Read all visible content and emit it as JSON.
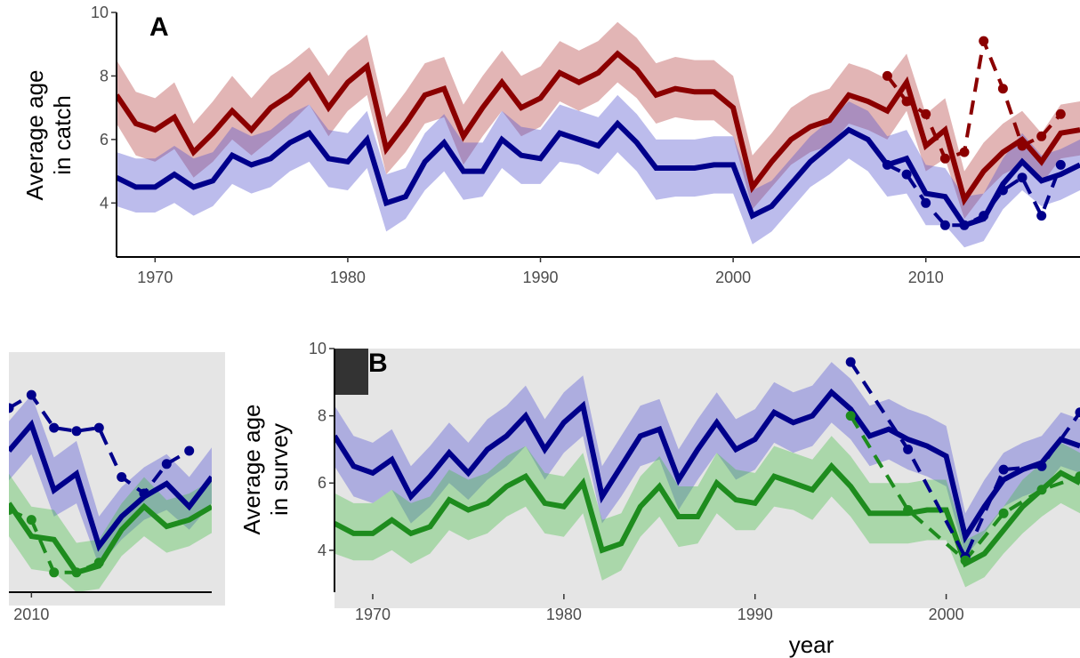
{
  "chart_data": [
    {
      "type": "line",
      "panel_label": "A",
      "ylabel": [
        "Average age",
        "in catch"
      ],
      "xlabel": "",
      "xlim": [
        1968,
        2018
      ],
      "ylim": [
        2.3,
        10
      ],
      "yticks": [
        4,
        6,
        8,
        10
      ],
      "xticks": [
        1970,
        1980,
        1990,
        2000,
        2010
      ],
      "background": "white",
      "colors": {
        "red": "#8b0000",
        "red_band": "#c97b7b",
        "blue": "#00008b",
        "blue_band": "#8080d6"
      },
      "series": [
        {
          "color": "red",
          "x": [
            1968,
            1969,
            1970,
            1971,
            1972,
            1973,
            1974,
            1975,
            1976,
            1977,
            1978,
            1979,
            1980,
            1981,
            1982,
            1983,
            1984,
            1985,
            1986,
            1987,
            1988,
            1989,
            1990,
            1991,
            1992,
            1993,
            1994,
            1995,
            1996,
            1997,
            1998,
            1999,
            2000,
            2001,
            2002,
            2003,
            2004,
            2005,
            2006,
            2007,
            2008,
            2009,
            2010,
            2011,
            2012,
            2013,
            2014,
            2015,
            2016,
            2017,
            2018
          ],
          "y": [
            7.4,
            6.5,
            6.3,
            6.7,
            5.6,
            6.2,
            6.9,
            6.3,
            7.0,
            7.4,
            8.0,
            7.0,
            7.8,
            8.3,
            5.7,
            6.5,
            7.4,
            7.6,
            6.1,
            7.0,
            7.8,
            7.0,
            7.3,
            8.1,
            7.8,
            8.1,
            8.7,
            8.2,
            7.4,
            7.6,
            7.5,
            7.5,
            7.0,
            4.5,
            5.3,
            6.0,
            6.4,
            6.6,
            7.4,
            7.2,
            6.9,
            7.8,
            5.8,
            6.3,
            4.1,
            5.0,
            5.6,
            6.0,
            5.3,
            6.2,
            6.3
          ],
          "lower": [
            6.5,
            5.5,
            5.3,
            5.7,
            4.8,
            5.3,
            6.0,
            5.5,
            6.0,
            6.5,
            7.1,
            6.1,
            6.9,
            7.4,
            4.9,
            5.6,
            6.5,
            6.7,
            5.2,
            6.1,
            6.9,
            6.1,
            6.4,
            7.2,
            6.9,
            7.2,
            7.8,
            7.3,
            6.5,
            6.7,
            6.6,
            6.6,
            6.1,
            3.8,
            4.5,
            5.2,
            5.6,
            5.8,
            6.5,
            6.3,
            6.0,
            6.9,
            5.0,
            5.4,
            3.5,
            4.3,
            4.9,
            5.2,
            4.6,
            5.4,
            5.5
          ],
          "upper": [
            8.5,
            7.5,
            7.3,
            7.8,
            6.5,
            7.2,
            8.0,
            7.3,
            8.0,
            8.4,
            8.9,
            8.0,
            8.8,
            9.3,
            6.7,
            7.5,
            8.4,
            8.6,
            7.1,
            8.0,
            8.8,
            8.0,
            8.3,
            9.1,
            8.8,
            9.1,
            9.7,
            9.2,
            8.4,
            8.6,
            8.5,
            8.5,
            8.0,
            5.5,
            6.2,
            7.0,
            7.4,
            7.6,
            8.4,
            8.2,
            7.9,
            8.7,
            6.8,
            7.3,
            5.0,
            5.9,
            6.5,
            6.9,
            6.2,
            7.1,
            7.2
          ]
        },
        {
          "color": "blue",
          "x": [
            1968,
            1969,
            1970,
            1971,
            1972,
            1973,
            1974,
            1975,
            1976,
            1977,
            1978,
            1979,
            1980,
            1981,
            1982,
            1983,
            1984,
            1985,
            1986,
            1987,
            1988,
            1989,
            1990,
            1991,
            1992,
            1993,
            1994,
            1995,
            1996,
            1997,
            1998,
            1999,
            2000,
            2001,
            2002,
            2003,
            2004,
            2005,
            2006,
            2007,
            2008,
            2009,
            2010,
            2011,
            2012,
            2013,
            2014,
            2015,
            2016,
            2017,
            2018
          ],
          "y": [
            4.8,
            4.5,
            4.5,
            4.9,
            4.5,
            4.7,
            5.5,
            5.2,
            5.4,
            5.9,
            6.2,
            5.4,
            5.3,
            6.0,
            4.0,
            4.2,
            5.3,
            5.9,
            5.0,
            5.0,
            6.0,
            5.5,
            5.4,
            6.2,
            6.0,
            5.8,
            6.5,
            5.9,
            5.1,
            5.1,
            5.1,
            5.2,
            5.2,
            3.6,
            3.9,
            4.6,
            5.3,
            5.8,
            6.3,
            6.0,
            5.2,
            5.4,
            4.3,
            4.2,
            3.3,
            3.5,
            4.6,
            5.3,
            4.7,
            4.9,
            5.2
          ],
          "lower": [
            3.9,
            3.7,
            3.7,
            4.0,
            3.6,
            3.9,
            4.6,
            4.3,
            4.5,
            5.0,
            5.3,
            4.5,
            4.4,
            5.1,
            3.1,
            3.5,
            4.4,
            5.0,
            4.1,
            4.2,
            5.1,
            4.6,
            4.6,
            5.3,
            5.2,
            4.9,
            5.6,
            5.0,
            4.1,
            4.2,
            4.2,
            4.3,
            4.3,
            2.7,
            3.1,
            3.8,
            4.5,
            4.9,
            5.4,
            5.0,
            4.2,
            4.3,
            3.3,
            3.3,
            2.6,
            2.8,
            3.8,
            4.4,
            3.9,
            4.1,
            4.4
          ],
          "upper": [
            5.6,
            5.4,
            5.4,
            5.8,
            5.4,
            5.6,
            6.4,
            6.1,
            6.3,
            6.8,
            7.1,
            6.3,
            6.2,
            6.9,
            4.9,
            5.1,
            6.2,
            6.8,
            5.9,
            5.9,
            6.9,
            6.4,
            6.3,
            7.1,
            6.9,
            6.7,
            7.4,
            6.8,
            6.0,
            6.0,
            6.0,
            6.1,
            6.1,
            4.4,
            4.7,
            5.4,
            6.1,
            6.6,
            7.2,
            6.9,
            6.1,
            6.3,
            5.2,
            5.1,
            4.2,
            4.3,
            5.4,
            6.2,
            5.5,
            5.7,
            6.0
          ]
        },
        {
          "color": "red",
          "style": "dashed-points",
          "x": [
            2008,
            2009,
            2010,
            2011,
            2012,
            2013,
            2014,
            2015,
            2016,
            2017
          ],
          "y": [
            8.0,
            7.2,
            6.8,
            5.4,
            5.6,
            9.1,
            7.6,
            5.8,
            6.1,
            6.8
          ]
        },
        {
          "color": "blue",
          "style": "dashed-points",
          "x": [
            2008,
            2009,
            2010,
            2011,
            2012,
            2013,
            2014,
            2015,
            2016,
            2017
          ],
          "y": [
            5.2,
            4.9,
            4.0,
            3.3,
            3.3,
            3.6,
            4.4,
            4.8,
            3.6,
            5.2
          ]
        }
      ]
    },
    {
      "type": "line",
      "panel_label": "B",
      "ylabel": [
        "Average age",
        "in survey"
      ],
      "xlabel": "year",
      "xlim": [
        1968,
        2007
      ],
      "ylim": [
        2.7,
        10
      ],
      "yticks": [
        4,
        6,
        8,
        10
      ],
      "xticks": [
        1970,
        1980,
        1990,
        2000
      ],
      "background": "grey",
      "colors": {
        "blue": "#00008b",
        "blue_band": "#8f8fd8",
        "green": "#1e8c1e",
        "green_band": "#8fd48f",
        "panel_bg": "#e5e5e5"
      },
      "series": [
        {
          "color": "blue",
          "x": [
            1968,
            1969,
            1970,
            1971,
            1972,
            1973,
            1974,
            1975,
            1976,
            1977,
            1978,
            1979,
            1980,
            1981,
            1982,
            1983,
            1984,
            1985,
            1986,
            1987,
            1988,
            1989,
            1990,
            1991,
            1992,
            1993,
            1994,
            1995,
            1996,
            1997,
            1998,
            1999,
            2000,
            2001,
            2002,
            2003,
            2004,
            2005,
            2006,
            2007
          ],
          "y": [
            7.4,
            6.5,
            6.3,
            6.7,
            5.6,
            6.2,
            6.9,
            6.3,
            7.0,
            7.4,
            8.0,
            7.0,
            7.8,
            8.3,
            5.6,
            6.5,
            7.4,
            7.6,
            6.1,
            7.0,
            7.8,
            7.0,
            7.3,
            8.1,
            7.8,
            8.0,
            8.7,
            8.2,
            7.4,
            7.6,
            7.3,
            7.1,
            6.8,
            4.4,
            5.3,
            6.1,
            6.4,
            6.6,
            7.3,
            7.1
          ],
          "lower": [
            6.5,
            5.6,
            5.4,
            5.8,
            4.8,
            5.3,
            6.0,
            5.5,
            6.1,
            6.5,
            7.1,
            6.1,
            6.9,
            7.4,
            4.8,
            5.6,
            6.5,
            6.7,
            5.2,
            6.1,
            6.9,
            6.1,
            6.4,
            7.2,
            6.9,
            7.1,
            7.8,
            7.3,
            6.5,
            6.7,
            6.4,
            6.2,
            5.9,
            3.8,
            4.5,
            5.3,
            5.6,
            5.8,
            6.5,
            6.3
          ],
          "upper": [
            8.3,
            7.4,
            7.2,
            7.6,
            6.5,
            7.1,
            7.8,
            7.2,
            7.9,
            8.3,
            8.9,
            7.9,
            8.7,
            9.2,
            6.5,
            7.4,
            8.3,
            8.5,
            7.0,
            7.9,
            8.7,
            7.9,
            8.2,
            9.0,
            8.7,
            8.9,
            9.6,
            9.1,
            8.3,
            8.5,
            8.2,
            8.0,
            7.7,
            5.1,
            6.1,
            6.9,
            7.2,
            7.4,
            8.1,
            7.9
          ]
        },
        {
          "color": "green",
          "x": [
            1968,
            1969,
            1970,
            1971,
            1972,
            1973,
            1974,
            1975,
            1976,
            1977,
            1978,
            1979,
            1980,
            1981,
            1982,
            1983,
            1984,
            1985,
            1986,
            1987,
            1988,
            1989,
            1990,
            1991,
            1992,
            1993,
            1994,
            1995,
            1996,
            1997,
            1998,
            1999,
            2000,
            2001,
            2002,
            2003,
            2004,
            2005,
            2006,
            2007
          ],
          "y": [
            4.8,
            4.5,
            4.5,
            4.9,
            4.5,
            4.7,
            5.5,
            5.2,
            5.4,
            5.9,
            6.2,
            5.4,
            5.3,
            6.0,
            4.0,
            4.2,
            5.3,
            5.9,
            5.0,
            5.0,
            6.0,
            5.5,
            5.4,
            6.2,
            6.0,
            5.8,
            6.5,
            5.9,
            5.1,
            5.1,
            5.1,
            5.2,
            5.2,
            3.6,
            3.9,
            4.6,
            5.3,
            5.8,
            6.3,
            6.0
          ],
          "lower": [
            3.9,
            3.7,
            3.7,
            4.0,
            3.6,
            3.9,
            4.6,
            4.3,
            4.5,
            5.0,
            5.3,
            4.5,
            4.4,
            5.1,
            3.1,
            3.4,
            4.4,
            5.0,
            4.1,
            4.2,
            5.1,
            4.6,
            4.6,
            5.3,
            5.2,
            4.9,
            5.6,
            5.0,
            4.2,
            4.2,
            4.2,
            4.3,
            4.3,
            2.9,
            3.2,
            3.9,
            4.5,
            5.0,
            5.4,
            5.1
          ],
          "upper": [
            5.7,
            5.4,
            5.4,
            5.8,
            5.4,
            5.6,
            6.4,
            6.1,
            6.3,
            6.8,
            7.1,
            6.3,
            6.2,
            6.9,
            4.9,
            5.1,
            6.2,
            6.8,
            5.9,
            5.9,
            6.9,
            6.4,
            6.3,
            7.1,
            6.9,
            6.7,
            7.4,
            6.8,
            6.0,
            6.0,
            6.0,
            6.1,
            6.1,
            4.3,
            4.6,
            5.3,
            6.1,
            6.6,
            7.2,
            6.9
          ]
        },
        {
          "color": "blue",
          "style": "dashed-points",
          "x": [
            1995,
            1998,
            2001,
            2003,
            2005,
            2007
          ],
          "y": [
            9.6,
            7.0,
            3.8,
            6.4,
            6.5,
            8.1
          ]
        },
        {
          "color": "green",
          "style": "dashed-points",
          "x": [
            1995,
            1998,
            2001,
            2003,
            2005,
            2007
          ],
          "y": [
            8.0,
            5.2,
            3.7,
            5.1,
            5.8,
            6.2
          ]
        }
      ]
    },
    {
      "type": "line",
      "panel_label": "",
      "note": "partial duplicate fragment of survey panel (left inset)",
      "xlim": [
        2009,
        2018
      ],
      "ylim": [
        2.7,
        10
      ],
      "xticks": [
        2010
      ],
      "background": "grey",
      "series": [
        {
          "color": "blue",
          "x": [
            2009,
            2010,
            2011,
            2012,
            2013,
            2014,
            2015,
            2016,
            2017,
            2018
          ],
          "y": [
            7.0,
            7.8,
            5.8,
            6.3,
            4.1,
            5.0,
            5.6,
            6.0,
            5.3,
            6.2
          ],
          "lower": [
            6.1,
            6.9,
            5.0,
            5.4,
            3.5,
            4.3,
            4.9,
            5.2,
            4.6,
            5.4
          ],
          "upper": [
            7.9,
            8.7,
            6.8,
            7.3,
            5.0,
            5.9,
            6.5,
            6.9,
            6.2,
            7.1
          ]
        },
        {
          "color": "green",
          "x": [
            2009,
            2010,
            2011,
            2012,
            2013,
            2014,
            2015,
            2016,
            2017,
            2018
          ],
          "y": [
            5.4,
            4.4,
            4.3,
            3.3,
            3.5,
            4.6,
            5.3,
            4.7,
            4.9,
            5.3
          ],
          "lower": [
            4.4,
            3.4,
            3.3,
            2.7,
            2.8,
            3.8,
            4.4,
            3.9,
            4.1,
            4.5
          ],
          "upper": [
            6.3,
            5.3,
            5.2,
            4.2,
            4.3,
            5.4,
            6.2,
            5.5,
            5.7,
            6.1
          ]
        },
        {
          "color": "blue",
          "style": "dashed-points",
          "x": [
            2009,
            2010,
            2011,
            2012,
            2013,
            2014,
            2015,
            2016,
            2017
          ],
          "y": [
            8.3,
            8.7,
            7.7,
            7.6,
            7.7,
            6.2,
            5.7,
            6.6,
            7.0
          ]
        },
        {
          "color": "green",
          "style": "dashed-points",
          "x": [
            2009,
            2010,
            2011,
            2012,
            2013
          ],
          "y": [
            5.2,
            4.9,
            3.3,
            3.3,
            3.6
          ]
        }
      ]
    }
  ]
}
